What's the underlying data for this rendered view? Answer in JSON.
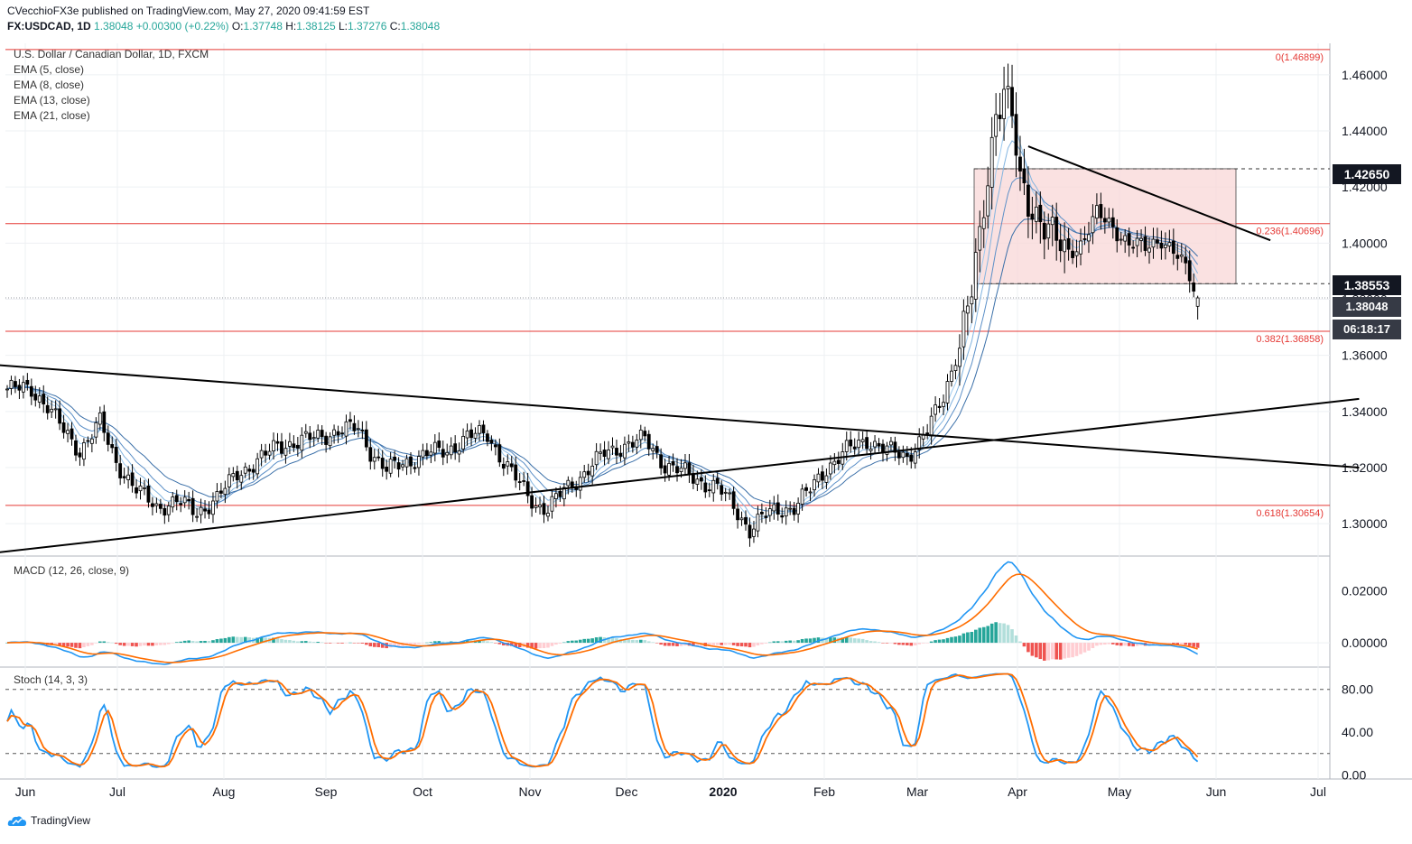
{
  "header": {
    "publisher_line": "CVecchioFX3e published on TradingView.com, May 27, 2020 09:41:59 EST",
    "symbol": "FX:USDCAD, 1D",
    "last": "1.38048",
    "change": "+0.00300 (+0.22%)",
    "ohlc": {
      "o_label": "O:",
      "o": "1.37748",
      "h_label": "H:",
      "h": "1.38125",
      "l_label": "L:",
      "l": "1.37276",
      "c_label": "C:",
      "c": "1.38048"
    }
  },
  "legend": {
    "title": "U.S. Dollar / Canadian Dollar, 1D, FXCM",
    "ema": [
      "EMA (5, close)",
      "EMA (8, close)",
      "EMA (13, close)",
      "EMA (21, close)"
    ]
  },
  "macd_label": "MACD (12, 26, close, 9)",
  "stoch_label": "Stoch (14, 3, 3)",
  "footer_brand": "TradingView",
  "price_tags": {
    "range_top": "1.42650",
    "range_bottom": "1.38553",
    "last": "1.38048",
    "countdown": "06:18:17"
  },
  "colors": {
    "up": "#ffffff",
    "down": "#000000",
    "ema": "#5b8fc7",
    "fib": "#e53935",
    "macd": "#2196f3",
    "signal": "#ff6d00",
    "stoch_k": "#2196f3",
    "stoch_d": "#ff6d00",
    "hist_pos": "#26a69a",
    "hist_neg": "#ef5350",
    "box_fill": "#f8d7d7"
  },
  "chart_data": {
    "type": "candlestick",
    "x_ticks": [
      "Jun",
      "Jul",
      "Aug",
      "Sep",
      "Oct",
      "Nov",
      "Dec",
      "2020",
      "Feb",
      "Mar",
      "Apr",
      "May",
      "Jun",
      "Jul"
    ],
    "y_ticks": [
      "1.30000",
      "1.32000",
      "1.34000",
      "1.36000",
      "1.38000",
      "1.40000",
      "1.42000",
      "1.44000",
      "1.46000"
    ],
    "ylim": [
      1.2888,
      1.4712
    ],
    "fib_levels": [
      {
        "label": "0(1.46899)",
        "value": 1.46899
      },
      {
        "label": "0.236(1.40696)",
        "value": 1.40696
      },
      {
        "label": "0.382(1.36858)",
        "value": 1.36858
      },
      {
        "label": "0.618(1.30654)",
        "value": 1.30654
      }
    ],
    "range_box": {
      "top": 1.4265,
      "bottom": 1.38553
    },
    "series_close_approx": [
      [
        0,
        1.348
      ],
      [
        6,
        1.348
      ],
      [
        10,
        1.342
      ],
      [
        14,
        1.333
      ],
      [
        18,
        1.326
      ],
      [
        23,
        1.336
      ],
      [
        27,
        1.322
      ],
      [
        32,
        1.312
      ],
      [
        37,
        1.306
      ],
      [
        42,
        1.308
      ],
      [
        47,
        1.304
      ],
      [
        52,
        1.309
      ],
      [
        57,
        1.318
      ],
      [
        62,
        1.322
      ],
      [
        67,
        1.328
      ],
      [
        72,
        1.329
      ],
      [
        77,
        1.331
      ],
      [
        82,
        1.333
      ],
      [
        87,
        1.334
      ],
      [
        90,
        1.326
      ],
      [
        94,
        1.319
      ],
      [
        99,
        1.322
      ],
      [
        104,
        1.325
      ],
      [
        109,
        1.326
      ],
      [
        114,
        1.331
      ],
      [
        119,
        1.332
      ],
      [
        123,
        1.322
      ],
      [
        127,
        1.314
      ],
      [
        131,
        1.307
      ],
      [
        134,
        1.305
      ],
      [
        138,
        1.312
      ],
      [
        143,
        1.318
      ],
      [
        148,
        1.325
      ],
      [
        153,
        1.328
      ],
      [
        158,
        1.33
      ],
      [
        163,
        1.321
      ],
      [
        168,
        1.318
      ],
      [
        172,
        1.315
      ],
      [
        176,
        1.313
      ],
      [
        180,
        1.306
      ],
      [
        184,
        1.298
      ],
      [
        187,
        1.302
      ],
      [
        191,
        1.305
      ],
      [
        195,
        1.306
      ],
      [
        199,
        1.312
      ],
      [
        203,
        1.32
      ],
      [
        208,
        1.326
      ],
      [
        213,
        1.33
      ],
      [
        218,
        1.326
      ],
      [
        223,
        1.324
      ],
      [
        228,
        1.333
      ],
      [
        232,
        1.345
      ],
      [
        236,
        1.365
      ],
      [
        239,
        1.382
      ],
      [
        241,
        1.4
      ],
      [
        243,
        1.425
      ],
      [
        245,
        1.448
      ],
      [
        247,
        1.455
      ],
      [
        249,
        1.444
      ],
      [
        251,
        1.42
      ],
      [
        253,
        1.415
      ],
      [
        256,
        1.41
      ],
      [
        259,
        1.402
      ],
      [
        262,
        1.396
      ],
      [
        266,
        1.4
      ],
      [
        270,
        1.41
      ],
      [
        274,
        1.406
      ],
      [
        278,
        1.4
      ],
      [
        282,
        1.398
      ],
      [
        286,
        1.402
      ],
      [
        290,
        1.395
      ],
      [
        293,
        1.388
      ],
      [
        295,
        1.38
      ]
    ],
    "trendlines": [
      {
        "name": "",
        "from": [
          -2,
          1.3565
        ],
        "to": [
          335,
          1.32
        ]
      },
      {
        "name": "",
        "from": [
          -2,
          1.2898
        ],
        "to": [
          335,
          1.3445
        ]
      },
      {
        "name": "",
        "from": [
          253,
          1.4345
        ],
        "to": [
          313,
          1.401
        ]
      }
    ],
    "macd": {
      "ylim": [
        -0.009,
        0.033
      ],
      "y_ticks": [
        "0.00000",
        "0.02000"
      ]
    },
    "stoch": {
      "ylim": [
        -3,
        100
      ],
      "y_ticks": [
        "0.00",
        "40.00",
        "80.00"
      ],
      "bands": [
        80,
        20
      ]
    }
  }
}
